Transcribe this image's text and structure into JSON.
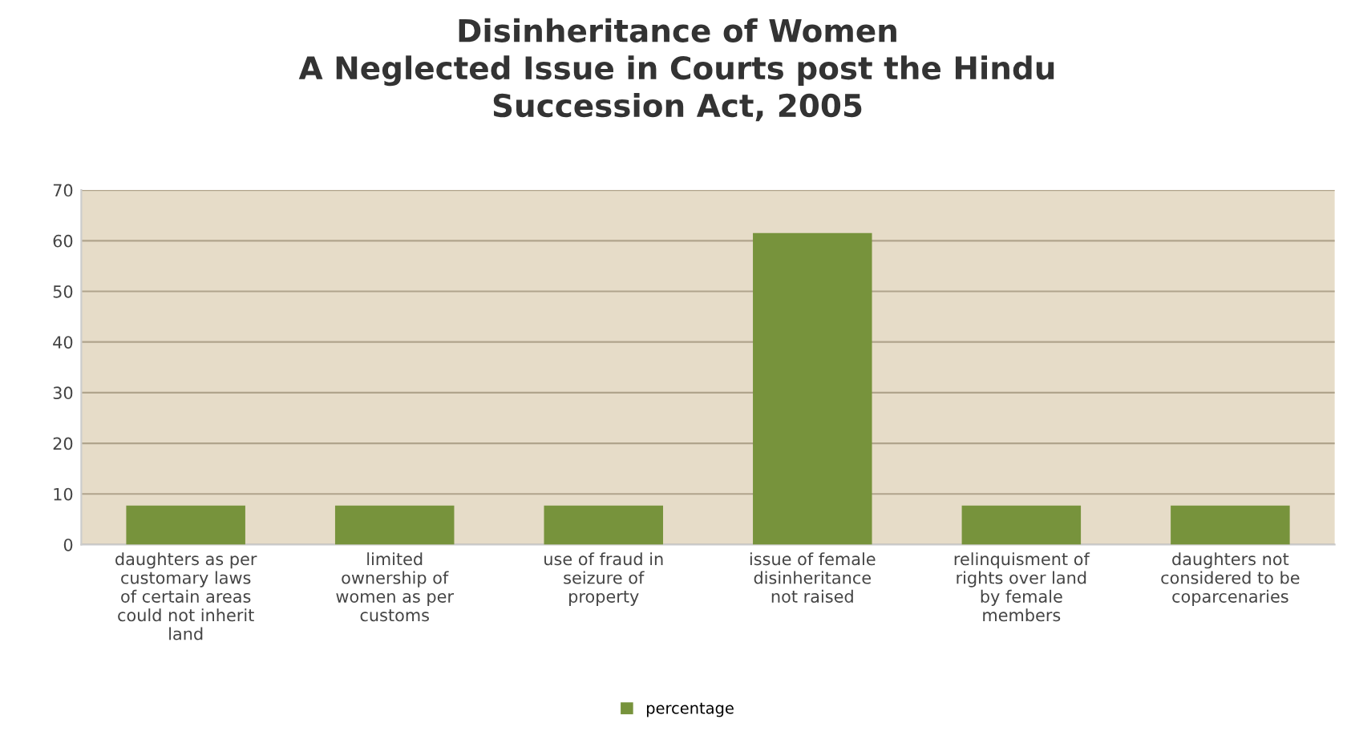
{
  "chart_data": {
    "type": "bar",
    "title": "Disinheritance of Women\nA Neglected Issue in Courts post the Hindu\nSuccession Act, 2005",
    "categories": [
      "daughters as per\ncustomary laws\nof certain areas\ncould not inherit\nland",
      "limited\nownership of\nwomen as per\ncustoms",
      "use of fraud in\nseizure of\nproperty",
      "issue of female\ndisinheritance\nnot raised",
      "relinquisment of\nrights over land\nby female\nmembers",
      "daughters not\nconsidered to be\ncoparcenaries"
    ],
    "series": [
      {
        "name": "percentage",
        "color": "#77933c",
        "values": [
          7.7,
          7.7,
          7.7,
          61.5,
          7.7,
          7.7
        ]
      }
    ],
    "ylim": [
      0,
      70
    ],
    "yticks": [
      0,
      10,
      20,
      30,
      40,
      50,
      60,
      70
    ],
    "grid": "y",
    "legend": "bottom"
  }
}
